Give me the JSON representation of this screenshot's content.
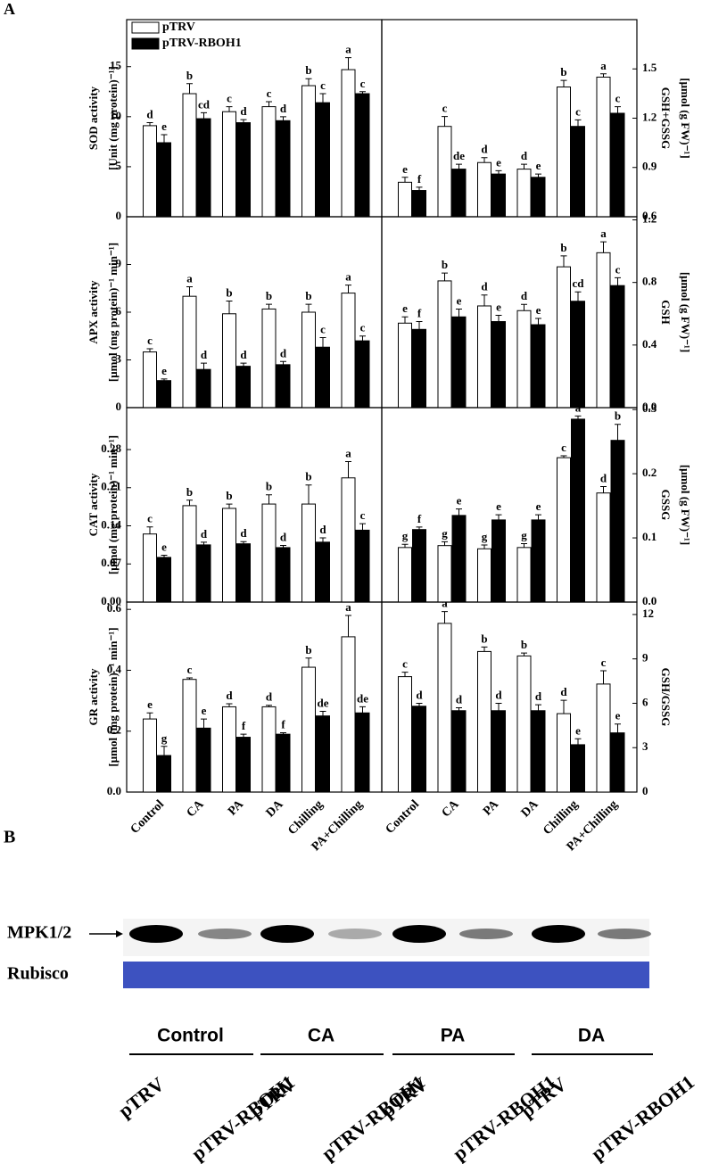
{
  "panel_label": "A",
  "chart_data": [
    {
      "type": "bar",
      "ylabel": [
        "SOD activity",
        "[Unit (mg protein)⁻¹]"
      ],
      "yaxis": "left",
      "ylim": [
        0,
        19.7
      ],
      "yticks": [
        0,
        5,
        10,
        15
      ],
      "legend": true,
      "series": [
        {
          "name": "pTRV",
          "color": "#ffffff",
          "values": [
            9.1,
            12.3,
            10.5,
            11.0,
            13.1,
            14.7
          ],
          "errors": [
            0.3,
            1.0,
            0.5,
            0.5,
            0.7,
            1.2
          ],
          "letters": [
            "d",
            "b",
            "c",
            "c",
            "b",
            "a"
          ]
        },
        {
          "name": "pTRV-RBOH1",
          "color": "#000000",
          "values": [
            7.4,
            9.8,
            9.4,
            9.6,
            11.4,
            12.3
          ],
          "errors": [
            0.8,
            0.6,
            0.3,
            0.4,
            0.9,
            0.2
          ],
          "letters": [
            "e",
            "cd",
            "d",
            "d",
            "c",
            "c"
          ]
        }
      ]
    },
    {
      "type": "bar",
      "ylabel": [
        "GSH+GSSG",
        "[μmol (g FW)⁻¹]"
      ],
      "yaxis": "right",
      "ylim": [
        0.6,
        1.8
      ],
      "yticks": [
        0.6,
        0.9,
        1.2,
        1.5
      ],
      "series": [
        {
          "color": "#ffffff",
          "values": [
            0.81,
            1.15,
            0.93,
            0.89,
            1.39,
            1.45
          ],
          "errors": [
            0.03,
            0.06,
            0.03,
            0.03,
            0.04,
            0.02
          ],
          "letters": [
            "e",
            "c",
            "d",
            "d",
            "b",
            "a"
          ]
        },
        {
          "color": "#000000",
          "values": [
            0.76,
            0.89,
            0.86,
            0.84,
            1.15,
            1.23
          ],
          "errors": [
            0.02,
            0.03,
            0.02,
            0.02,
            0.04,
            0.04
          ],
          "letters": [
            "f",
            "de",
            "e",
            "e",
            "c",
            "c"
          ]
        }
      ]
    },
    {
      "type": "bar",
      "ylabel": [
        "APX activity",
        "[μmol (mg protein)⁻¹ min⁻¹]"
      ],
      "yaxis": "left",
      "ylim": [
        0,
        12
      ],
      "yticks": [
        0,
        3,
        6,
        9
      ],
      "series": [
        {
          "color": "#ffffff",
          "values": [
            3.5,
            7.0,
            5.9,
            6.2,
            6.0,
            7.2
          ],
          "errors": [
            0.2,
            0.6,
            0.8,
            0.3,
            0.5,
            0.5
          ],
          "letters": [
            "c",
            "a",
            "b",
            "b",
            "b",
            "a"
          ]
        },
        {
          "color": "#000000",
          "values": [
            1.7,
            2.4,
            2.6,
            2.7,
            3.8,
            4.2
          ],
          "errors": [
            0.1,
            0.4,
            0.2,
            0.2,
            0.6,
            0.3
          ],
          "letters": [
            "e",
            "d",
            "d",
            "d",
            "c",
            "c"
          ]
        }
      ]
    },
    {
      "type": "bar",
      "ylabel": [
        "GSH",
        "[μmol (g FW)⁻¹]"
      ],
      "yaxis": "right",
      "ylim": [
        0,
        1.22
      ],
      "yticks": [
        {
          "value": 0,
          "label": "0.0"
        },
        0.4,
        0.8,
        1.2
      ],
      "series": [
        {
          "color": "#ffffff",
          "values": [
            0.54,
            0.81,
            0.65,
            0.62,
            0.9,
            0.99
          ],
          "errors": [
            0.04,
            0.05,
            0.07,
            0.04,
            0.07,
            0.07
          ],
          "letters": [
            "e",
            "b",
            "d",
            "d",
            "b",
            "a"
          ]
        },
        {
          "color": "#000000",
          "values": [
            0.5,
            0.58,
            0.55,
            0.53,
            0.68,
            0.78
          ],
          "errors": [
            0.05,
            0.05,
            0.04,
            0.04,
            0.06,
            0.05
          ],
          "letters": [
            "f",
            "e",
            "e",
            "e",
            "cd",
            "c"
          ]
        }
      ]
    },
    {
      "type": "bar",
      "ylabel": [
        "CAT activity",
        "[μmol (mg protein)⁻¹ min⁻¹]"
      ],
      "yaxis": "left",
      "ylim": [
        0,
        0.357
      ],
      "yticks": [
        {
          "value": 0,
          "label": "0.00"
        },
        0.07,
        0.14,
        0.21,
        0.28
      ],
      "series": [
        {
          "color": "#ffffff",
          "values": [
            0.125,
            0.177,
            0.172,
            0.18,
            0.18,
            0.228
          ],
          "errors": [
            0.013,
            0.01,
            0.008,
            0.017,
            0.035,
            0.03
          ],
          "letters": [
            "c",
            "b",
            "b",
            "b",
            "b",
            "a"
          ]
        },
        {
          "color": "#000000",
          "values": [
            0.082,
            0.105,
            0.107,
            0.1,
            0.11,
            0.132
          ],
          "errors": [
            0.004,
            0.005,
            0.004,
            0.004,
            0.008,
            0.012
          ],
          "letters": [
            "e",
            "d",
            "d",
            "d",
            "d",
            "c"
          ]
        }
      ]
    },
    {
      "type": "bar",
      "ylabel": [
        "GSSG",
        "[μmol (g FW)⁻¹]"
      ],
      "yaxis": "right",
      "ylim": [
        0,
        0.303
      ],
      "yticks": [
        {
          "value": 0,
          "label": "0.0"
        },
        0.1,
        0.2,
        0.3
      ],
      "series": [
        {
          "color": "#ffffff",
          "values": [
            0.085,
            0.088,
            0.083,
            0.085,
            0.225,
            0.17
          ],
          "errors": [
            0.005,
            0.006,
            0.006,
            0.006,
            0.003,
            0.01
          ],
          "letters": [
            "g",
            "g",
            "g",
            "g",
            "c",
            "d"
          ]
        },
        {
          "color": "#000000",
          "values": [
            0.113,
            0.135,
            0.128,
            0.128,
            0.285,
            0.252
          ],
          "errors": [
            0.004,
            0.01,
            0.008,
            0.008,
            0.005,
            0.025
          ],
          "letters": [
            "f",
            "e",
            "e",
            "e",
            "a",
            "b"
          ]
        }
      ]
    },
    {
      "type": "bar",
      "ylabel": [
        "GR activity",
        "[μmol (mg protein)⁻¹ min⁻¹]"
      ],
      "yaxis": "left",
      "ylim": [
        0,
        0.624
      ],
      "yticks": [
        {
          "value": 0,
          "label": "0.0"
        },
        0.2,
        0.4,
        0.6
      ],
      "categories": [
        "Control",
        "CA",
        "PA",
        "DA",
        "Chilling",
        "PA+Chilling"
      ],
      "series": [
        {
          "color": "#ffffff",
          "values": [
            0.24,
            0.37,
            0.28,
            0.28,
            0.41,
            0.51
          ],
          "errors": [
            0.02,
            0.005,
            0.01,
            0.005,
            0.03,
            0.07
          ],
          "letters": [
            "e",
            "c",
            "d",
            "d",
            "b",
            "a"
          ]
        },
        {
          "color": "#000000",
          "values": [
            0.12,
            0.21,
            0.18,
            0.19,
            0.25,
            0.26
          ],
          "errors": [
            0.03,
            0.03,
            0.01,
            0.005,
            0.015,
            0.02
          ],
          "letters": [
            "g",
            "e",
            "f",
            "f",
            "de",
            "de"
          ]
        }
      ]
    },
    {
      "type": "bar",
      "ylabel": [
        "GSH/GSSG"
      ],
      "yaxis": "right",
      "ylim": [
        0,
        12.84
      ],
      "yticks": [
        0,
        3,
        6,
        9,
        12
      ],
      "categories": [
        "Control",
        "CA",
        "PA",
        "DA",
        "Chilling",
        "PA+Chilling"
      ],
      "series": [
        {
          "color": "#ffffff",
          "values": [
            7.8,
            11.4,
            9.5,
            9.2,
            5.3,
            7.3
          ],
          "errors": [
            0.3,
            0.8,
            0.3,
            0.2,
            0.9,
            0.9
          ],
          "letters": [
            "c",
            "a",
            "b",
            "b",
            "d",
            "c"
          ]
        },
        {
          "color": "#000000",
          "values": [
            5.8,
            5.5,
            5.5,
            5.5,
            3.2,
            4.0
          ],
          "errors": [
            0.2,
            0.2,
            0.5,
            0.4,
            0.4,
            0.6
          ],
          "letters": [
            "d",
            "d",
            "d",
            "d",
            "e",
            "e"
          ]
        }
      ]
    }
  ],
  "blot": {
    "label": "B",
    "rows": [
      "MPK1/2",
      "Rubisco"
    ],
    "groups": [
      "Control",
      "CA",
      "PA",
      "DA"
    ],
    "lanes": [
      "pTRV",
      "pTRV-RBOH1",
      "pTRV",
      "pTRV-RBOH1",
      "pTRV",
      "pTRV-RBOH1",
      "pTRV",
      "pTRV-RBOH1"
    ]
  }
}
